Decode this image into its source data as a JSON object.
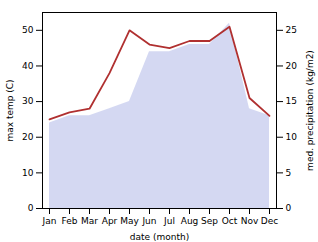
{
  "chart_data": {
    "type": "line",
    "categories": [
      "Jan",
      "Feb",
      "Mar",
      "Apr",
      "May",
      "Jun",
      "Jul",
      "Aug",
      "Sep",
      "Oct",
      "Nov",
      "Dec"
    ],
    "series": [
      {
        "type": "area",
        "axis": "y2",
        "color": "#b0b8e8",
        "values": [
          12,
          13,
          13,
          14,
          15,
          22,
          22,
          23,
          23,
          26,
          14,
          13
        ]
      },
      {
        "type": "line",
        "color": "#b03030",
        "values": [
          25,
          27,
          28,
          38,
          50,
          46,
          45,
          47,
          47,
          51,
          31,
          26
        ]
      }
    ],
    "xlabel": "date (month)",
    "ylabel": "max temp (C)",
    "y2label": "med. precipitation (kg/m2)",
    "ylim": [
      0,
      55
    ],
    "yticks": [
      0,
      10,
      20,
      30,
      40,
      50
    ],
    "y2lim": [
      0,
      27.5
    ],
    "y2ticks": [
      0,
      5,
      10,
      15,
      20,
      25
    ],
    "grid": false
  }
}
